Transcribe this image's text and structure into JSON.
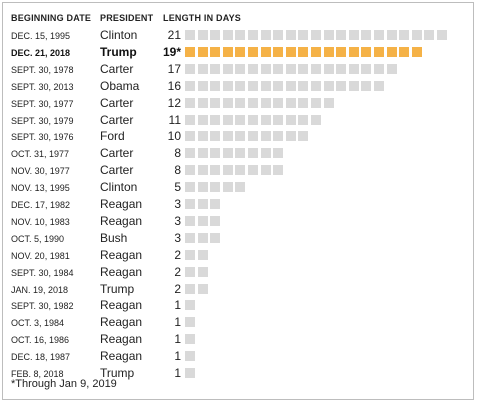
{
  "headers": {
    "date": "BEGINNING DATE",
    "president": "PRESIDENT",
    "length": "LENGTH IN DAYS"
  },
  "footnote": "*Through Jan 9, 2019",
  "colors": {
    "default_square": "#d9d9d9",
    "highlight_square": "#f5b247"
  },
  "chart_data": {
    "type": "table",
    "unit": "days",
    "highlighted_row": 1,
    "rows": [
      {
        "date": "DEC. 15, 1995",
        "president": "Clinton",
        "days": 21,
        "label": "21"
      },
      {
        "date": "DEC. 21, 2018",
        "president": "Trump",
        "days": 19,
        "label": "19*"
      },
      {
        "date": "SEPT. 30, 1978",
        "president": "Carter",
        "days": 17,
        "label": "17"
      },
      {
        "date": "SEPT. 30, 2013",
        "president": "Obama",
        "days": 16,
        "label": "16"
      },
      {
        "date": "SEPT. 30, 1977",
        "president": "Carter",
        "days": 12,
        "label": "12"
      },
      {
        "date": "SEPT. 30, 1979",
        "president": "Carter",
        "days": 11,
        "label": "11"
      },
      {
        "date": "SEPT. 30, 1976",
        "president": "Ford",
        "days": 10,
        "label": "10"
      },
      {
        "date": "OCT. 31, 1977",
        "president": "Carter",
        "days": 8,
        "label": "8"
      },
      {
        "date": "NOV. 30, 1977",
        "president": "Carter",
        "days": 8,
        "label": "8"
      },
      {
        "date": "NOV. 13, 1995",
        "president": "Clinton",
        "days": 5,
        "label": "5"
      },
      {
        "date": "DEC. 17, 1982",
        "president": "Reagan",
        "days": 3,
        "label": "3"
      },
      {
        "date": "NOV. 10, 1983",
        "president": "Reagan",
        "days": 3,
        "label": "3"
      },
      {
        "date": "OCT. 5, 1990",
        "president": "Bush",
        "days": 3,
        "label": "3"
      },
      {
        "date": "NOV. 20, 1981",
        "president": "Reagan",
        "days": 2,
        "label": "2"
      },
      {
        "date": "SEPT. 30, 1984",
        "president": "Reagan",
        "days": 2,
        "label": "2"
      },
      {
        "date": "JAN. 19, 2018",
        "president": "Trump",
        "days": 2,
        "label": "2"
      },
      {
        "date": "SEPT. 30, 1982",
        "president": "Reagan",
        "days": 1,
        "label": "1"
      },
      {
        "date": "OCT. 3, 1984",
        "president": "Reagan",
        "days": 1,
        "label": "1"
      },
      {
        "date": "OCT. 16, 1986",
        "president": "Reagan",
        "days": 1,
        "label": "1"
      },
      {
        "date": "DEC. 18, 1987",
        "president": "Reagan",
        "days": 1,
        "label": "1"
      },
      {
        "date": "FEB. 8, 2018",
        "president": "Trump",
        "days": 1,
        "label": "1"
      }
    ]
  }
}
